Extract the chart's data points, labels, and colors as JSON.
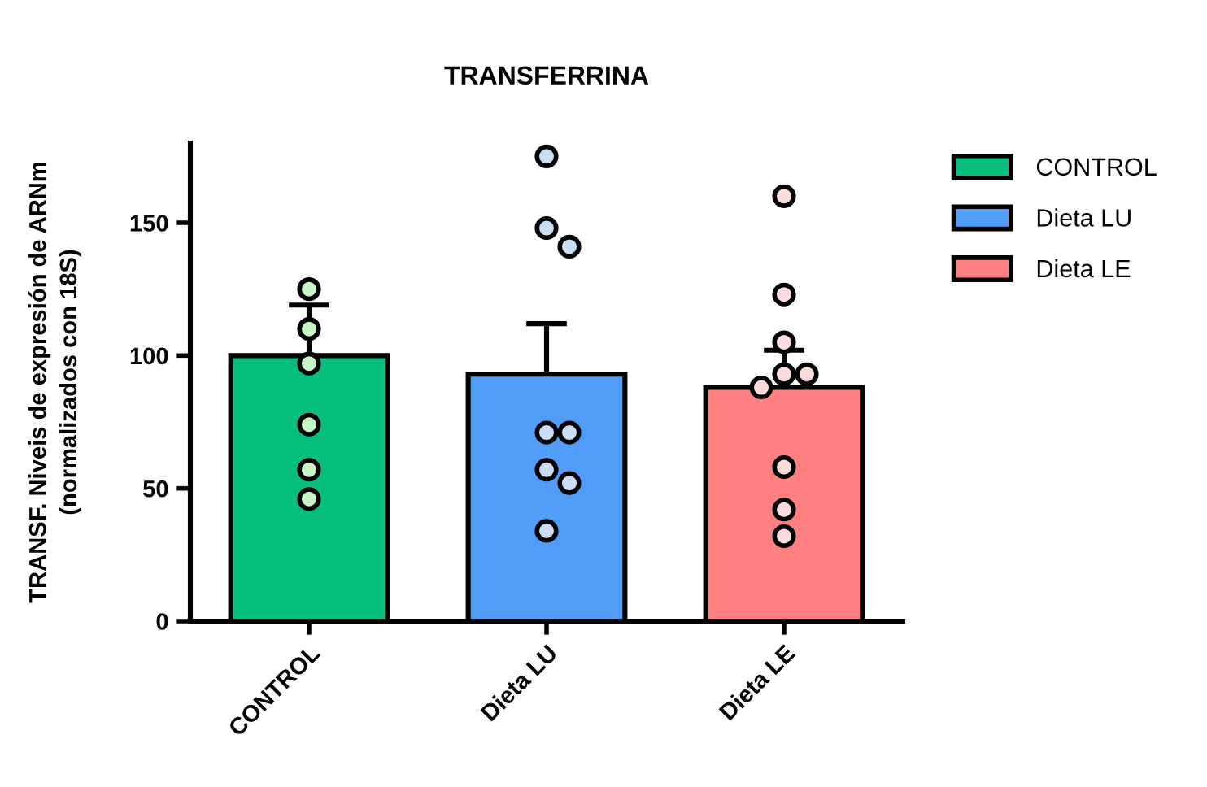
{
  "chart_data": {
    "type": "bar",
    "title": "TRANSFERRINA",
    "ylabel": "TRANSF. Niveis de expresión de ARNm\n(normalizados con 18S)",
    "categories": [
      "CONTROL",
      "Dieta LU",
      "Dieta LE"
    ],
    "series": [
      {
        "name": "CONTROL",
        "color": "#05bf7a",
        "values": [
          100,
          null,
          null
        ],
        "errors": [
          [
            100,
            119
          ],
          null,
          null
        ]
      },
      {
        "name": "Dieta LU",
        "color": "#509ef8",
        "values": [
          null,
          93,
          null
        ],
        "errors": [
          null,
          [
            93,
            112
          ],
          null
        ]
      },
      {
        "name": "Dieta LE",
        "color": "#fe8080",
        "values": [
          null,
          null,
          88
        ],
        "errors": [
          null,
          null,
          [
            88,
            102
          ]
        ]
      },
      {
        "type": "scatter",
        "color": "#c8f5c8",
        "x": [
          "CONTROL",
          "CONTROL",
          "CONTROL",
          "CONTROL",
          "CONTROL",
          "CONTROL"
        ],
        "values": [
          125,
          110,
          97,
          74,
          57,
          46
        ]
      },
      {
        "type": "scatter",
        "color": "#c9ddf5",
        "x": [
          "Dieta LU",
          "Dieta LU",
          "Dieta LU",
          "Dieta LU",
          "Dieta LU",
          "Dieta LU",
          "Dieta LU",
          "Dieta LU"
        ],
        "values": [
          175,
          148,
          141,
          71,
          71,
          57,
          52,
          34
        ]
      },
      {
        "type": "scatter",
        "color": "#fadcdc",
        "x": [
          "Dieta LE",
          "Dieta LE",
          "Dieta LE",
          "Dieta LE",
          "Dieta LE",
          "Dieta LE",
          "Dieta LE",
          "Dieta LE",
          "Dieta LE"
        ],
        "values": [
          160,
          123,
          105,
          93,
          93,
          88,
          58,
          42,
          32
        ]
      }
    ],
    "ylim": [
      0,
      180
    ],
    "yticks": [
      0,
      50,
      100,
      150
    ],
    "legend": "right",
    "marker": "circle"
  }
}
